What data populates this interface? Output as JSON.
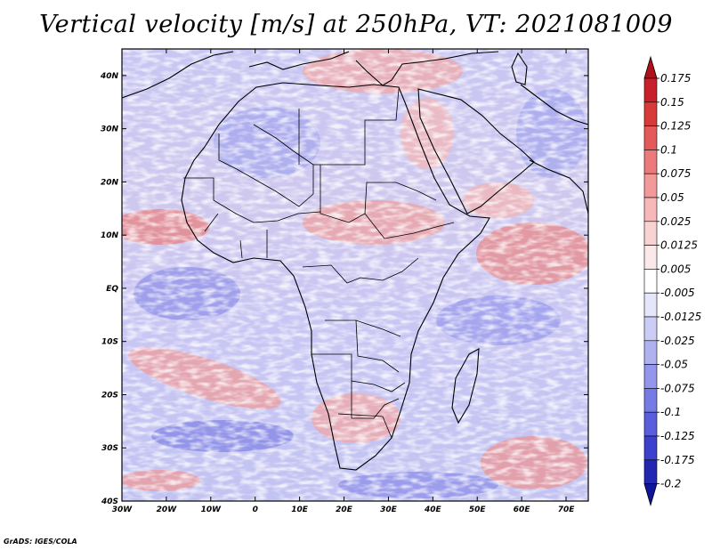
{
  "title": "Vertical velocity [m/s] at 250hPa, VT: 2021081009",
  "credit": "GrADS: IGES/COLA",
  "axes": {
    "lon_labels": [
      "30W",
      "20W",
      "10W",
      "0",
      "10E",
      "20E",
      "30E",
      "40E",
      "50E",
      "60E",
      "70E"
    ],
    "lat_labels": [
      "40N",
      "30N",
      "20N",
      "10N",
      "EQ",
      "10S",
      "20S",
      "30S",
      "40S"
    ]
  },
  "colorbar": {
    "labels": [
      "0.175",
      "0.15",
      "0.125",
      "0.1",
      "0.075",
      "0.05",
      "0.025",
      "0.0125",
      "0.005",
      "-0.005",
      "-0.0125",
      "-0.025",
      "-0.05",
      "-0.075",
      "-0.1",
      "-0.125",
      "-0.175",
      "-0.2"
    ],
    "colors": [
      "#b0101a",
      "#c8202a",
      "#d83a3a",
      "#e45a5a",
      "#ec7a7a",
      "#f29a9a",
      "#f6b8b8",
      "#f9d2d2",
      "#fbe8e8",
      "#ffffff",
      "#e6e6fa",
      "#cccdf6",
      "#b0b2f0",
      "#9396ea",
      "#767ae4",
      "#5a5edc",
      "#3c40cc",
      "#2226b0",
      "#10149a"
    ]
  },
  "colors": {
    "upward": "#e06a6a",
    "downward": "#6e70e6",
    "neutral": "#ffffff",
    "coast": "#000000"
  }
}
